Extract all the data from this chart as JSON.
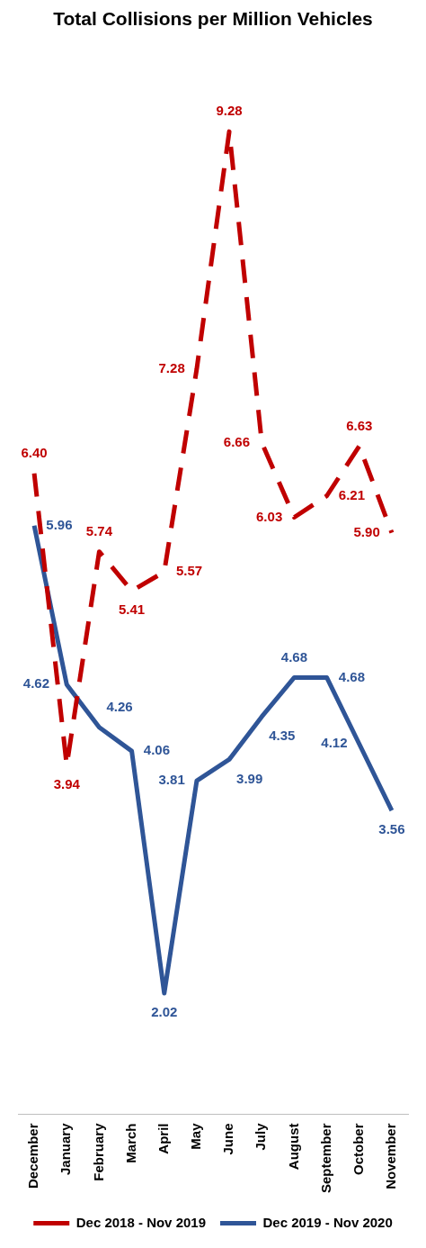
{
  "chart_data": {
    "type": "line",
    "title": "Total Collisions per Million Vehicles",
    "categories": [
      "December",
      "January",
      "February",
      "March",
      "April",
      "May",
      "June",
      "July",
      "August",
      "September",
      "October",
      "November"
    ],
    "series": [
      {
        "name": "Dec 2018 - Nov 2019",
        "color": "#c00000",
        "line_style": "dashed",
        "values": [
          6.4,
          3.94,
          5.74,
          5.41,
          5.57,
          7.28,
          9.28,
          6.66,
          6.03,
          6.21,
          6.63,
          5.9
        ],
        "value_labels": [
          "6.40",
          "3.94",
          "5.74",
          "5.41",
          "5.57",
          "7.28",
          "9.28",
          "6.66",
          "6.03",
          "6.21",
          "6.63",
          "5.90"
        ]
      },
      {
        "name": "Dec 2019 - Nov 2020",
        "color": "#2f5597",
        "line_style": "solid",
        "values": [
          5.96,
          4.62,
          4.26,
          4.06,
          2.02,
          3.81,
          3.99,
          4.35,
          4.68,
          4.68,
          4.12,
          3.56
        ],
        "value_labels": [
          "5.96",
          "4.62",
          "4.26",
          "4.06",
          "2.02",
          "3.81",
          "3.99",
          "4.35",
          "4.68",
          "4.68",
          "4.12",
          "3.56"
        ]
      }
    ],
    "legend": "bottom",
    "grid": false,
    "marker": "none",
    "tick_labels": "x"
  }
}
